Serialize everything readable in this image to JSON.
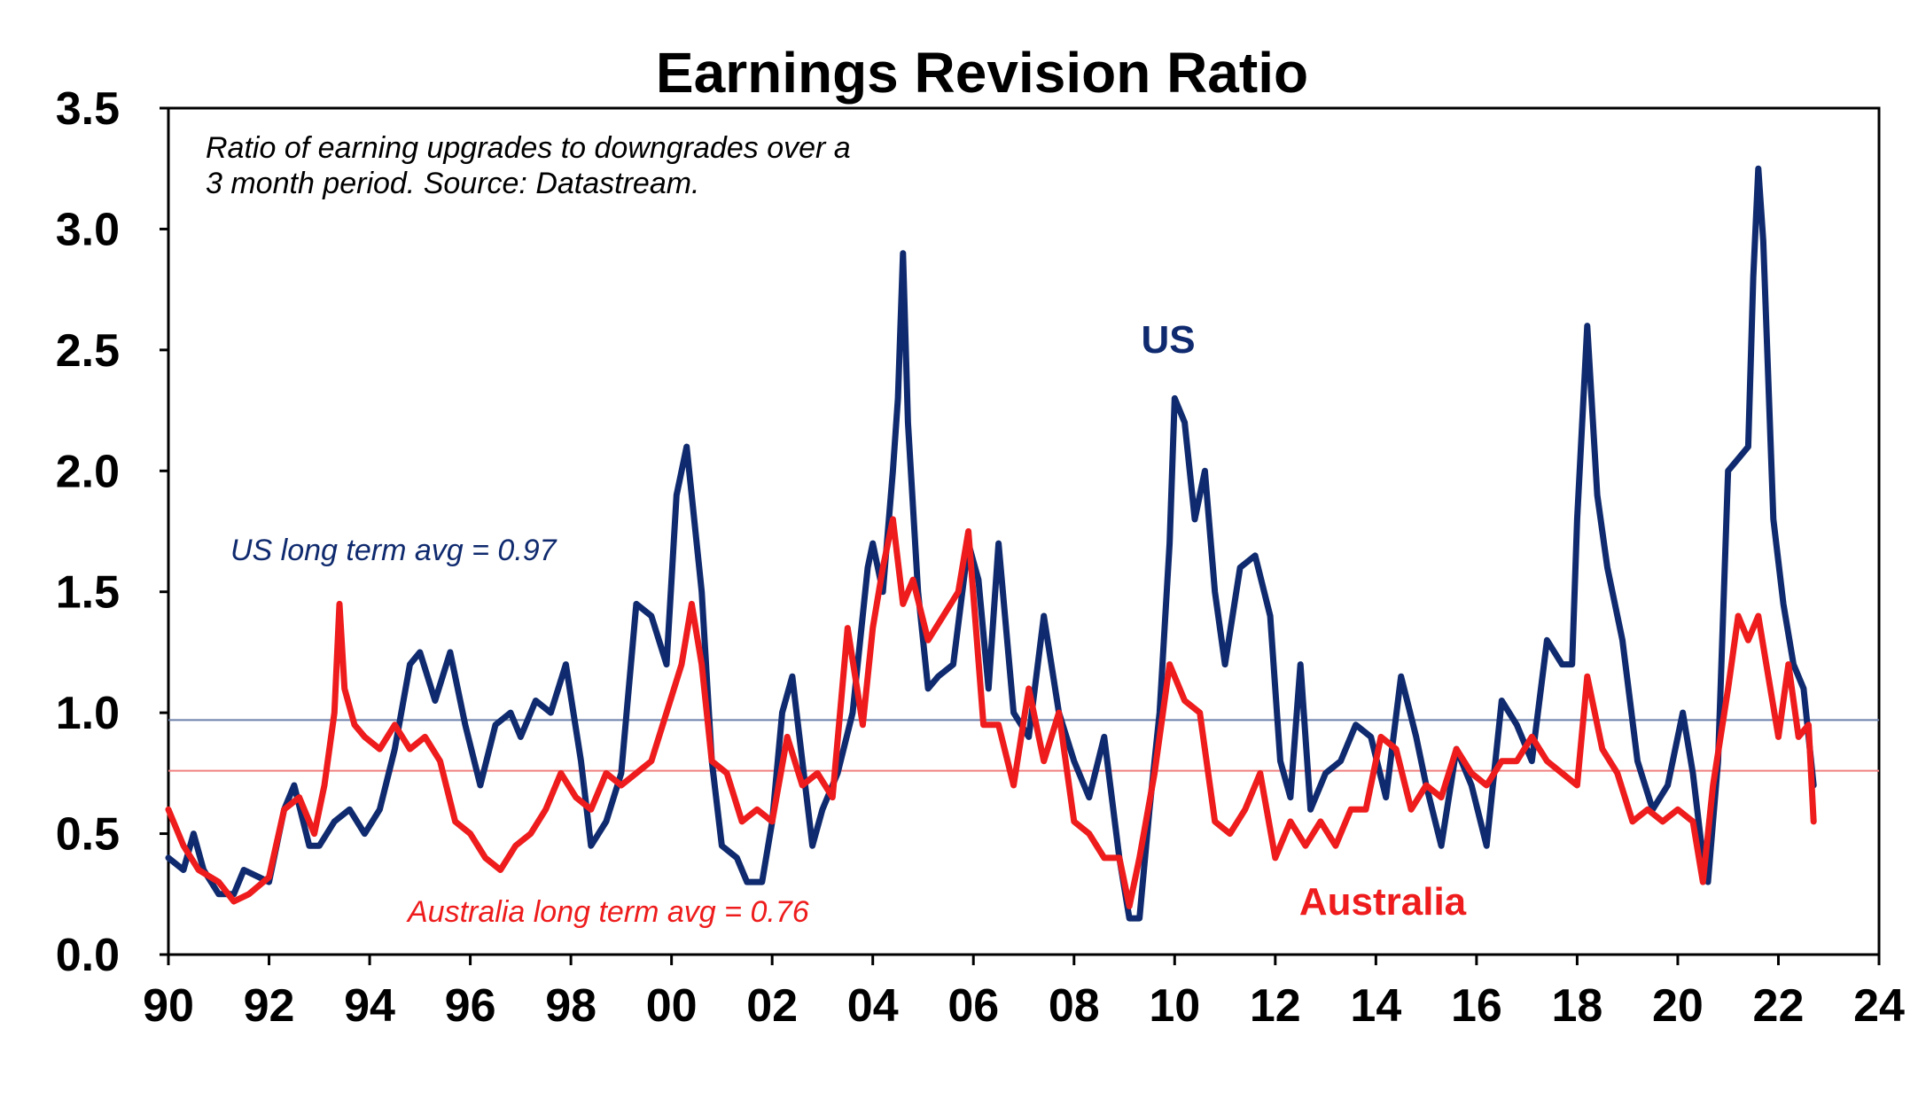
{
  "chart_data": {
    "type": "line",
    "title": "Earnings Revision Ratio",
    "annotation": {
      "line1": "Ratio of earning upgrades to downgrades over a",
      "line2": "3 month period. Source: Datastream."
    },
    "xlabel": "",
    "ylabel": "",
    "xlim": [
      1990,
      2024
    ],
    "ylim": [
      0,
      3.5
    ],
    "x_ticks": [
      1990,
      1992,
      1994,
      1996,
      1998,
      2000,
      2002,
      2004,
      2006,
      2008,
      2010,
      2012,
      2014,
      2016,
      2018,
      2020,
      2022,
      2024
    ],
    "x_tick_labels": [
      "90",
      "92",
      "94",
      "96",
      "98",
      "00",
      "02",
      "04",
      "06",
      "08",
      "10",
      "12",
      "14",
      "16",
      "18",
      "20",
      "22",
      "24"
    ],
    "y_ticks": [
      0,
      0.5,
      1.0,
      1.5,
      2.0,
      2.5,
      3.0,
      3.5
    ],
    "y_tick_labels": [
      "0.0",
      "0.5",
      "1.0",
      "1.5",
      "2.0",
      "2.5",
      "3.0",
      "3.5"
    ],
    "grid": false,
    "reference_lines": [
      {
        "name": "US long term avg",
        "value": 0.97,
        "label": "US long term avg = 0.97",
        "color": "#6b7fa8"
      },
      {
        "name": "Australia long term avg",
        "value": 0.76,
        "label": "Australia long term avg = 0.76",
        "color": "#f08080"
      }
    ],
    "series": [
      {
        "name": "US",
        "label": "US",
        "color": "#0f2a6e",
        "x": [
          1990.0,
          1990.3,
          1990.5,
          1990.7,
          1991.0,
          1991.3,
          1991.5,
          1991.8,
          1992.0,
          1992.3,
          1992.5,
          1992.8,
          1993.0,
          1993.3,
          1993.6,
          1993.9,
          1994.2,
          1994.5,
          1994.8,
          1995.0,
          1995.3,
          1995.6,
          1995.9,
          1996.2,
          1996.5,
          1996.8,
          1997.0,
          1997.3,
          1997.6,
          1997.9,
          1998.2,
          1998.4,
          1998.7,
          1999.0,
          1999.3,
          1999.6,
          1999.9,
          2000.1,
          2000.3,
          2000.4,
          2000.6,
          2000.8,
          2001.0,
          2001.3,
          2001.5,
          2001.8,
          2002.0,
          2002.2,
          2002.4,
          2002.6,
          2002.8,
          2003.0,
          2003.3,
          2003.6,
          2003.9,
          2004.0,
          2004.2,
          2004.4,
          2004.5,
          2004.6,
          2004.7,
          2004.9,
          2005.1,
          2005.3,
          2005.6,
          2005.9,
          2006.1,
          2006.3,
          2006.5,
          2006.8,
          2007.1,
          2007.4,
          2007.7,
          2008.0,
          2008.3,
          2008.6,
          2008.9,
          2009.1,
          2009.3,
          2009.5,
          2009.7,
          2009.9,
          2010.0,
          2010.2,
          2010.4,
          2010.6,
          2010.8,
          2011.0,
          2011.3,
          2011.6,
          2011.9,
          2012.1,
          2012.3,
          2012.5,
          2012.7,
          2013.0,
          2013.3,
          2013.6,
          2013.9,
          2014.2,
          2014.5,
          2014.8,
          2015.0,
          2015.3,
          2015.6,
          2015.9,
          2016.2,
          2016.5,
          2016.8,
          2017.1,
          2017.4,
          2017.7,
          2017.9,
          2018.0,
          2018.2,
          2018.4,
          2018.6,
          2018.9,
          2019.2,
          2019.5,
          2019.8,
          2020.1,
          2020.3,
          2020.5,
          2020.6,
          2020.8,
          2021.0,
          2021.2,
          2021.4,
          2021.5,
          2021.6,
          2021.7,
          2021.9,
          2022.1,
          2022.3,
          2022.5,
          2022.7
        ],
        "values": [
          0.4,
          0.35,
          0.5,
          0.35,
          0.25,
          0.25,
          0.35,
          0.32,
          0.3,
          0.6,
          0.7,
          0.45,
          0.45,
          0.55,
          0.6,
          0.5,
          0.6,
          0.85,
          1.2,
          1.25,
          1.05,
          1.25,
          0.95,
          0.7,
          0.95,
          1.0,
          0.9,
          1.05,
          1.0,
          1.2,
          0.8,
          0.45,
          0.55,
          0.75,
          1.45,
          1.4,
          1.2,
          1.9,
          2.1,
          1.9,
          1.5,
          0.8,
          0.45,
          0.4,
          0.3,
          0.3,
          0.55,
          1.0,
          1.15,
          0.8,
          0.45,
          0.6,
          0.75,
          1.0,
          1.6,
          1.7,
          1.5,
          2.0,
          2.3,
          2.9,
          2.2,
          1.5,
          1.1,
          1.15,
          1.2,
          1.7,
          1.55,
          1.1,
          1.7,
          1.0,
          0.9,
          1.4,
          1.0,
          0.8,
          0.65,
          0.9,
          0.4,
          0.15,
          0.15,
          0.6,
          1.0,
          1.7,
          2.3,
          2.2,
          1.8,
          2.0,
          1.5,
          1.2,
          1.6,
          1.65,
          1.4,
          0.8,
          0.65,
          1.2,
          0.6,
          0.75,
          0.8,
          0.95,
          0.9,
          0.65,
          1.15,
          0.9,
          0.7,
          0.45,
          0.85,
          0.7,
          0.45,
          1.05,
          0.95,
          0.8,
          1.3,
          1.2,
          1.2,
          1.8,
          2.6,
          1.9,
          1.6,
          1.3,
          0.8,
          0.6,
          0.7,
          1.0,
          0.75,
          0.4,
          0.3,
          0.8,
          2.0,
          2.05,
          2.1,
          2.8,
          3.25,
          2.95,
          1.8,
          1.45,
          1.2,
          1.1,
          0.7
        ]
      },
      {
        "name": "Australia",
        "label": "Australia",
        "color": "#ee1c1c",
        "x": [
          1990.0,
          1990.3,
          1990.6,
          1991.0,
          1991.3,
          1991.6,
          1992.0,
          1992.3,
          1992.6,
          1992.9,
          1993.1,
          1993.3,
          1993.4,
          1993.5,
          1993.7,
          1993.9,
          1994.2,
          1994.5,
          1994.8,
          1995.1,
          1995.4,
          1995.7,
          1996.0,
          1996.3,
          1996.6,
          1996.9,
          1997.2,
          1997.5,
          1997.8,
          1998.1,
          1998.4,
          1998.7,
          1999.0,
          1999.3,
          1999.6,
          1999.9,
          2000.2,
          2000.4,
          2000.6,
          2000.8,
          2001.1,
          2001.4,
          2001.7,
          2002.0,
          2002.3,
          2002.6,
          2002.9,
          2003.2,
          2003.5,
          2003.8,
          2004.0,
          2004.2,
          2004.4,
          2004.6,
          2004.8,
          2005.1,
          2005.4,
          2005.7,
          2005.9,
          2006.2,
          2006.5,
          2006.8,
          2007.1,
          2007.4,
          2007.7,
          2008.0,
          2008.3,
          2008.6,
          2008.9,
          2009.1,
          2009.3,
          2009.6,
          2009.9,
          2010.2,
          2010.5,
          2010.8,
          2011.1,
          2011.4,
          2011.7,
          2012.0,
          2012.3,
          2012.6,
          2012.9,
          2013.2,
          2013.5,
          2013.8,
          2014.1,
          2014.4,
          2014.7,
          2015.0,
          2015.3,
          2015.6,
          2015.9,
          2016.2,
          2016.5,
          2016.8,
          2017.1,
          2017.4,
          2017.7,
          2018.0,
          2018.2,
          2018.5,
          2018.8,
          2019.1,
          2019.4,
          2019.7,
          2020.0,
          2020.3,
          2020.5,
          2020.7,
          2021.0,
          2021.2,
          2021.4,
          2021.6,
          2021.8,
          2022.0,
          2022.2,
          2022.4,
          2022.6,
          2022.7
        ],
        "values": [
          0.6,
          0.45,
          0.35,
          0.3,
          0.22,
          0.25,
          0.32,
          0.6,
          0.65,
          0.5,
          0.7,
          1.0,
          1.45,
          1.1,
          0.95,
          0.9,
          0.85,
          0.95,
          0.85,
          0.9,
          0.8,
          0.55,
          0.5,
          0.4,
          0.35,
          0.45,
          0.5,
          0.6,
          0.75,
          0.65,
          0.6,
          0.75,
          0.7,
          0.75,
          0.8,
          1.0,
          1.2,
          1.45,
          1.2,
          0.8,
          0.75,
          0.55,
          0.6,
          0.55,
          0.9,
          0.7,
          0.75,
          0.65,
          1.35,
          0.95,
          1.35,
          1.6,
          1.8,
          1.45,
          1.55,
          1.3,
          1.4,
          1.5,
          1.75,
          0.95,
          0.95,
          0.7,
          1.1,
          0.8,
          1.0,
          0.55,
          0.5,
          0.4,
          0.4,
          0.2,
          0.4,
          0.75,
          1.2,
          1.05,
          1.0,
          0.55,
          0.5,
          0.6,
          0.75,
          0.4,
          0.55,
          0.45,
          0.55,
          0.45,
          0.6,
          0.6,
          0.9,
          0.85,
          0.6,
          0.7,
          0.65,
          0.85,
          0.75,
          0.7,
          0.8,
          0.8,
          0.9,
          0.8,
          0.75,
          0.7,
          1.15,
          0.85,
          0.75,
          0.55,
          0.6,
          0.55,
          0.6,
          0.55,
          0.3,
          0.7,
          1.1,
          1.4,
          1.3,
          1.4,
          1.15,
          0.9,
          1.2,
          0.9,
          0.95,
          0.55
        ]
      }
    ]
  }
}
